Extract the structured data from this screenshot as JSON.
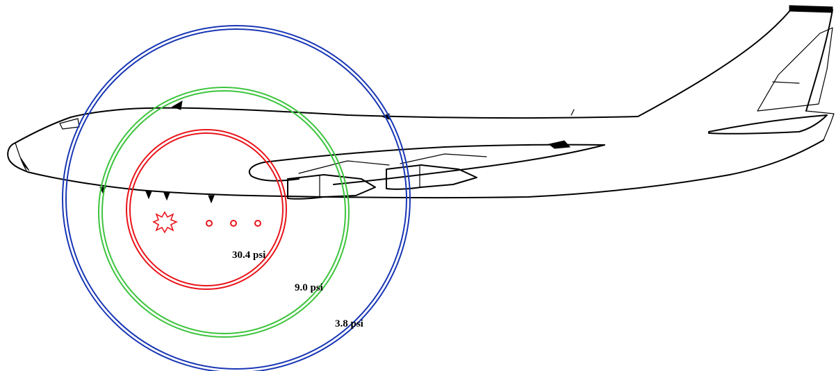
{
  "diagram": {
    "rings": [
      {
        "label": "30.4 psi",
        "color": "#e8141a"
      },
      {
        "label": "9.0 psi",
        "color": "#3cc43c"
      },
      {
        "label": "3.8 psi",
        "color": "#1836b4"
      }
    ],
    "colors": {
      "outline": "#000000",
      "charge": "#e8141a"
    },
    "icons": [
      "explosion-icon",
      "window-circle-icon"
    ]
  }
}
